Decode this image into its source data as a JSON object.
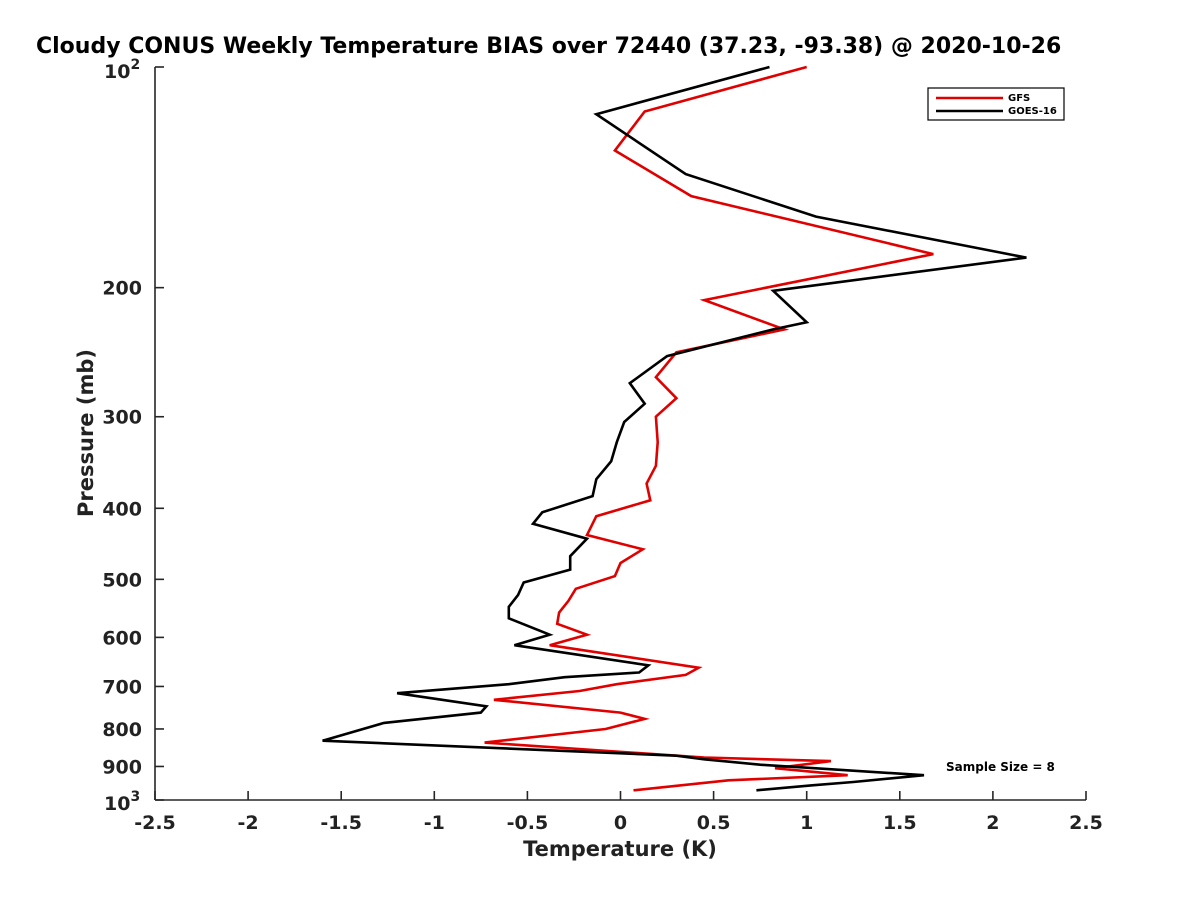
{
  "chart_data": {
    "type": "line",
    "title": "Cloudy CONUS Weekly Temperature BIAS over 72440 (37.23, -93.38) @ 2020-10-26",
    "xlabel": "Temperature (K)",
    "ylabel": "Pressure (mb)",
    "xlim": [
      -2.5,
      2.5
    ],
    "ylim": [
      100,
      1000
    ],
    "y_scale": "log",
    "y_reversed": true,
    "grid": false,
    "legend_position": "top-right",
    "x_ticks": [
      -2.5,
      -2,
      -1.5,
      -1,
      -0.5,
      0,
      0.5,
      1,
      1.5,
      2,
      2.5
    ],
    "x_tick_labels": [
      "-2.5",
      "-2",
      "-1.5",
      "-1",
      "-0.5",
      "0",
      "0.5",
      "1",
      "1.5",
      "2",
      "2.5"
    ],
    "y_ticks": [
      200,
      300,
      400,
      500,
      600,
      700,
      800,
      900
    ],
    "y_tick_labels": [
      "200",
      "300",
      "400",
      "500",
      "600",
      "700",
      "800",
      "900"
    ],
    "y_tick_base": "10",
    "y_tick_exp_top": "2",
    "y_tick_exp_bottom": "3",
    "annotation": "Sample Size = 8",
    "series": [
      {
        "name": "GFS",
        "color": "#e00000",
        "points": [
          [
            1.0,
            100
          ],
          [
            0.13,
            115
          ],
          [
            -0.03,
            130
          ],
          [
            0.38,
            150
          ],
          [
            1.68,
            180
          ],
          [
            0.45,
            208
          ],
          [
            0.88,
            228
          ],
          [
            0.3,
            245
          ],
          [
            0.19,
            265
          ],
          [
            0.3,
            283
          ],
          [
            0.19,
            300
          ],
          [
            0.2,
            325
          ],
          [
            0.19,
            350
          ],
          [
            0.14,
            370
          ],
          [
            0.16,
            390
          ],
          [
            -0.13,
            410
          ],
          [
            -0.18,
            435
          ],
          [
            0.12,
            455
          ],
          [
            0.0,
            475
          ],
          [
            -0.03,
            495
          ],
          [
            -0.24,
            515
          ],
          [
            -0.28,
            535
          ],
          [
            -0.33,
            555
          ],
          [
            -0.34,
            575
          ],
          [
            -0.18,
            595
          ],
          [
            -0.38,
            615
          ],
          [
            0.42,
            660
          ],
          [
            0.35,
            675
          ],
          [
            -0.02,
            695
          ],
          [
            -0.22,
            710
          ],
          [
            -0.68,
            730
          ],
          [
            0.0,
            760
          ],
          [
            0.13,
            775
          ],
          [
            -0.08,
            800
          ],
          [
            -0.73,
            835
          ],
          [
            0.45,
            875
          ],
          [
            1.13,
            885
          ],
          [
            0.83,
            905
          ],
          [
            1.22,
            925
          ],
          [
            0.58,
            940
          ],
          [
            0.07,
            970
          ]
        ]
      },
      {
        "name": "GOES-16",
        "color": "#000000",
        "points": [
          [
            0.8,
            100
          ],
          [
            -0.13,
            116
          ],
          [
            0.35,
            140
          ],
          [
            1.05,
            160
          ],
          [
            2.18,
            182
          ],
          [
            0.82,
            202
          ],
          [
            1.0,
            223
          ],
          [
            0.82,
            228
          ],
          [
            0.25,
            248
          ],
          [
            0.05,
            270
          ],
          [
            0.13,
            288
          ],
          [
            0.02,
            305
          ],
          [
            -0.02,
            325
          ],
          [
            -0.05,
            345
          ],
          [
            -0.13,
            365
          ],
          [
            -0.15,
            385
          ],
          [
            -0.42,
            405
          ],
          [
            -0.47,
            420
          ],
          [
            -0.18,
            440
          ],
          [
            -0.27,
            465
          ],
          [
            -0.27,
            485
          ],
          [
            -0.52,
            505
          ],
          [
            -0.55,
            525
          ],
          [
            -0.6,
            545
          ],
          [
            -0.6,
            565
          ],
          [
            -0.38,
            595
          ],
          [
            -0.57,
            615
          ],
          [
            0.15,
            655
          ],
          [
            0.1,
            670
          ],
          [
            -0.3,
            680
          ],
          [
            -0.6,
            695
          ],
          [
            -1.2,
            715
          ],
          [
            -0.72,
            745
          ],
          [
            -0.75,
            760
          ],
          [
            -1.27,
            785
          ],
          [
            -1.6,
            830
          ],
          [
            0.3,
            870
          ],
          [
            0.45,
            880
          ],
          [
            0.75,
            895
          ],
          [
            1.63,
            925
          ],
          [
            1.25,
            945
          ],
          [
            1.03,
            955
          ],
          [
            0.73,
            970
          ]
        ]
      }
    ]
  }
}
